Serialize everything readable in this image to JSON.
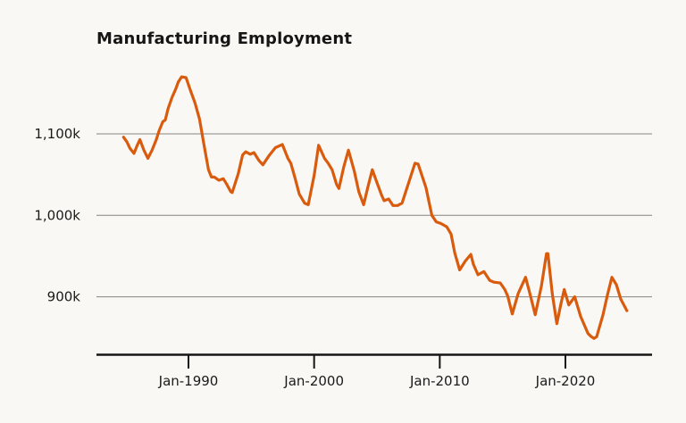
{
  "title": "Manufacturing Employment",
  "colors": {
    "background": "#faf8f5",
    "line": "#d95c0e",
    "grid": "#86837f",
    "axis": "#151515",
    "text": "#1a1a1a"
  },
  "chart_data": {
    "type": "line",
    "title": "Manufacturing Employment",
    "grid": true,
    "legend": false,
    "xlabel": "",
    "ylabel": "",
    "x_axis": {
      "tick_labels": [
        "Jan-1990",
        "Jan-2000",
        "Jan-2010",
        "Jan-2020"
      ],
      "tick_years": [
        1990,
        2000,
        2010,
        2020
      ],
      "range_years": [
        1983,
        2027
      ]
    },
    "y_axis": {
      "tick_labels": [
        "1,100k",
        "1,000k",
        "900k"
      ],
      "tick_values": [
        1100,
        1000,
        900
      ],
      "unit": "thousands of jobs",
      "approx_range": [
        845,
        1175
      ]
    },
    "series": [
      {
        "name": "Manufacturing Employment",
        "unit_suffix": "k",
        "points": [
          [
            1984.83,
            1096
          ],
          [
            1985.1,
            1090
          ],
          [
            1985.35,
            1082
          ],
          [
            1985.66,
            1076
          ],
          [
            1985.9,
            1085
          ],
          [
            1986.13,
            1093
          ],
          [
            1986.45,
            1080
          ],
          [
            1986.77,
            1070
          ],
          [
            1987.1,
            1080
          ],
          [
            1987.44,
            1093
          ],
          [
            1987.67,
            1104
          ],
          [
            1987.96,
            1115
          ],
          [
            1988.15,
            1117
          ],
          [
            1988.38,
            1131
          ],
          [
            1988.7,
            1145
          ],
          [
            1988.98,
            1155
          ],
          [
            1989.2,
            1164
          ],
          [
            1989.45,
            1170
          ],
          [
            1989.81,
            1169
          ],
          [
            1990.16,
            1153
          ],
          [
            1990.52,
            1138
          ],
          [
            1990.88,
            1118
          ],
          [
            1991.23,
            1087
          ],
          [
            1991.59,
            1056
          ],
          [
            1991.83,
            1047
          ],
          [
            1992.06,
            1047
          ],
          [
            1992.42,
            1043
          ],
          [
            1992.77,
            1045
          ],
          [
            1993.05,
            1038
          ],
          [
            1993.36,
            1029
          ],
          [
            1993.48,
            1028
          ],
          [
            1993.96,
            1051
          ],
          [
            1994.31,
            1074
          ],
          [
            1994.55,
            1078
          ],
          [
            1994.91,
            1075
          ],
          [
            1995.21,
            1077
          ],
          [
            1995.62,
            1067
          ],
          [
            1995.92,
            1062
          ],
          [
            1996.45,
            1074
          ],
          [
            1996.92,
            1083
          ],
          [
            1997.47,
            1087
          ],
          [
            1997.91,
            1070
          ],
          [
            1998.15,
            1064
          ],
          [
            1998.46,
            1047
          ],
          [
            1998.82,
            1026
          ],
          [
            1999.24,
            1015
          ],
          [
            1999.53,
            1013
          ],
          [
            2000.0,
            1049
          ],
          [
            2000.36,
            1086
          ],
          [
            2000.83,
            1070
          ],
          [
            2001.12,
            1064
          ],
          [
            2001.43,
            1056
          ],
          [
            2001.79,
            1038
          ],
          [
            2001.97,
            1033
          ],
          [
            2002.37,
            1060
          ],
          [
            2002.73,
            1080
          ],
          [
            2003.2,
            1054
          ],
          [
            2003.56,
            1029
          ],
          [
            2003.94,
            1013
          ],
          [
            2004.27,
            1034
          ],
          [
            2004.63,
            1056
          ],
          [
            2005.03,
            1039
          ],
          [
            2005.39,
            1024
          ],
          [
            2005.57,
            1018
          ],
          [
            2005.93,
            1020
          ],
          [
            2006.28,
            1012
          ],
          [
            2006.64,
            1012
          ],
          [
            2007.0,
            1015
          ],
          [
            2007.5,
            1039
          ],
          [
            2008.03,
            1064
          ],
          [
            2008.28,
            1063
          ],
          [
            2008.9,
            1034
          ],
          [
            2009.37,
            1000
          ],
          [
            2009.72,
            992
          ],
          [
            2010.08,
            990
          ],
          [
            2010.55,
            986
          ],
          [
            2010.9,
            977
          ],
          [
            2011.19,
            954
          ],
          [
            2011.58,
            933
          ],
          [
            2012.04,
            944
          ],
          [
            2012.47,
            952
          ],
          [
            2012.68,
            940
          ],
          [
            2013.04,
            927
          ],
          [
            2013.51,
            931
          ],
          [
            2013.98,
            920
          ],
          [
            2014.32,
            918
          ],
          [
            2014.82,
            917
          ],
          [
            2015.17,
            909
          ],
          [
            2015.41,
            901
          ],
          [
            2015.77,
            879
          ],
          [
            2016.24,
            904
          ],
          [
            2016.83,
            924
          ],
          [
            2017.17,
            904
          ],
          [
            2017.6,
            878
          ],
          [
            2018.09,
            913
          ],
          [
            2018.49,
            953
          ],
          [
            2018.61,
            953
          ],
          [
            2018.96,
            903
          ],
          [
            2019.32,
            867
          ],
          [
            2019.65,
            892
          ],
          [
            2019.91,
            909
          ],
          [
            2020.27,
            890
          ],
          [
            2020.74,
            900
          ],
          [
            2021.21,
            876
          ],
          [
            2021.8,
            855
          ],
          [
            2022.06,
            851
          ],
          [
            2022.28,
            849
          ],
          [
            2022.49,
            851
          ],
          [
            2022.99,
            878
          ],
          [
            2023.34,
            902
          ],
          [
            2023.7,
            924
          ],
          [
            2024.05,
            915
          ],
          [
            2024.41,
            897
          ],
          [
            2024.89,
            883
          ]
        ]
      }
    ]
  }
}
